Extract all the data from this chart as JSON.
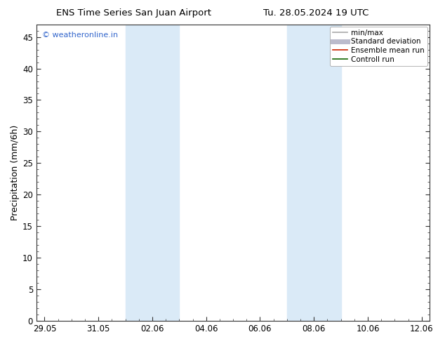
{
  "title_left": "ENS Time Series San Juan Airport",
  "title_right": "Tu. 28.05.2024 19 UTC",
  "ylabel": "Precipitation (mm/6h)",
  "xlabel_ticks": [
    "29.05",
    "31.05",
    "02.06",
    "04.06",
    "06.06",
    "08.06",
    "10.06",
    "12.06"
  ],
  "ylim": [
    0,
    47
  ],
  "yticks": [
    0,
    5,
    10,
    15,
    20,
    25,
    30,
    35,
    40,
    45
  ],
  "shade_bands": [
    {
      "x_start": 3,
      "x_end": 5
    },
    {
      "x_start": 9,
      "x_end": 11
    }
  ],
  "shade_color": "#daeaf7",
  "watermark": "© weatheronline.in",
  "watermark_color": "#3366cc",
  "legend_entries": [
    {
      "label": "min/max",
      "color": "#aaaaaa",
      "lw": 1.2
    },
    {
      "label": "Standard deviation",
      "color": "#bbbbcc",
      "lw": 5
    },
    {
      "label": "Ensemble mean run",
      "color": "#cc2200",
      "lw": 1.2
    },
    {
      "label": "Controll run",
      "color": "#116600",
      "lw": 1.2
    }
  ],
  "bg_color": "#ffffff",
  "tick_label_fontsize": 8.5,
  "axis_label_fontsize": 9,
  "title_fontsize": 9.5,
  "watermark_fontsize": 8,
  "legend_fontsize": 7.5,
  "total_days": 14,
  "xlim": [
    -0.3,
    14.3
  ]
}
